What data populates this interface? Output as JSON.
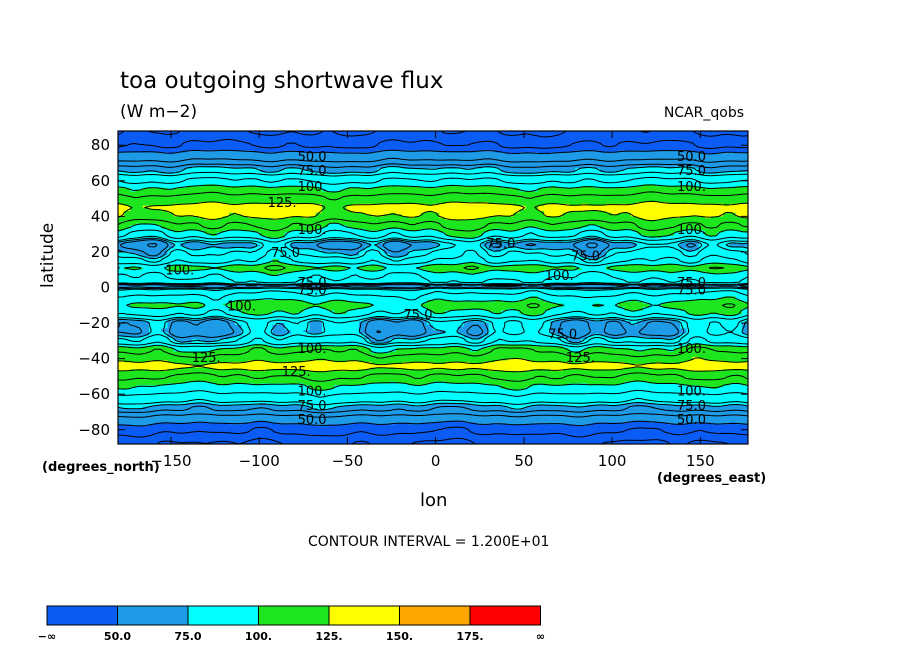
{
  "title": "toa outgoing shortwave flux",
  "units": "(W m−2)",
  "source": "NCAR_qobs",
  "ylabel": "latitude",
  "xlabel": "lon",
  "y_units": "(degrees_north)",
  "x_units": "(degrees_east)",
  "contour_interval_text": "CONTOUR INTERVAL = 1.200E+01",
  "colors": {
    "band0": "#0a5cf5",
    "band1": "#1e9be6",
    "band2": "#00ffff",
    "band3": "#1ee61e",
    "band4": "#ffff00",
    "band5": "#ffa500",
    "band6": "#ff0000"
  },
  "chart_data": {
    "type": "heatmap",
    "title": "toa outgoing shortwave flux",
    "units": "(W m−2)",
    "xlabel": "lon",
    "ylabel": "latitude",
    "xlim": [
      -180,
      177
    ],
    "ylim": [
      -88,
      88
    ],
    "x_ticks": [
      -150,
      -100,
      -50,
      0,
      50,
      100,
      150
    ],
    "x_tick_labels": [
      "−150",
      "−100",
      "−50",
      "0",
      "50",
      "100",
      "150"
    ],
    "y_ticks": [
      80,
      60,
      40,
      20,
      0,
      -20,
      -40,
      -60,
      -80
    ],
    "y_tick_labels": [
      "80",
      "60",
      "40",
      "20",
      "0",
      "−20",
      "−40",
      "−60",
      "−80"
    ],
    "colorbar": {
      "labels": [
        "−∞",
        "50.0",
        "75.0",
        "100.",
        "125.",
        "150.",
        "175.",
        "∞"
      ]
    },
    "zonal_profile": [
      {
        "lat": 88,
        "value": 30
      },
      {
        "lat": 80,
        "value": 40
      },
      {
        "lat": 74,
        "value": 55
      },
      {
        "lat": 66,
        "value": 75
      },
      {
        "lat": 60,
        "value": 90
      },
      {
        "lat": 55,
        "value": 103
      },
      {
        "lat": 50,
        "value": 115
      },
      {
        "lat": 45,
        "value": 130
      },
      {
        "lat": 41,
        "value": 126
      },
      {
        "lat": 35,
        "value": 108
      },
      {
        "lat": 30,
        "value": 95
      },
      {
        "lat": 24,
        "value": 72
      },
      {
        "lat": 19,
        "value": 80
      },
      {
        "lat": 15,
        "value": 88
      },
      {
        "lat": 11,
        "value": 104
      },
      {
        "lat": 7,
        "value": 93
      },
      {
        "lat": 3,
        "value": 88
      },
      {
        "lat": 1,
        "value": 68
      },
      {
        "lat": -2,
        "value": 86
      },
      {
        "lat": -6,
        "value": 95
      },
      {
        "lat": -10,
        "value": 104
      },
      {
        "lat": -14,
        "value": 96
      },
      {
        "lat": -20,
        "value": 74
      },
      {
        "lat": -25,
        "value": 72
      },
      {
        "lat": -30,
        "value": 82
      },
      {
        "lat": -35,
        "value": 105
      },
      {
        "lat": -40,
        "value": 118
      },
      {
        "lat": -44,
        "value": 132
      },
      {
        "lat": -50,
        "value": 110
      },
      {
        "lat": -56,
        "value": 98
      },
      {
        "lat": -62,
        "value": 85
      },
      {
        "lat": -68,
        "value": 72
      },
      {
        "lat": -74,
        "value": 55
      },
      {
        "lat": -80,
        "value": 42
      },
      {
        "lat": -88,
        "value": 30
      }
    ],
    "contour_labels": [
      {
        "text": "50.0",
        "lon": -70,
        "lat": 74
      },
      {
        "text": "75.0",
        "lon": -70,
        "lat": 66
      },
      {
        "text": "100.",
        "lon": -70,
        "lat": 57
      },
      {
        "text": "125.",
        "lon": -87,
        "lat": 48
      },
      {
        "text": "100.",
        "lon": -70,
        "lat": 33
      },
      {
        "text": "75.0",
        "lon": -85,
        "lat": 20
      },
      {
        "text": "75.0",
        "lon": 37,
        "lat": 25
      },
      {
        "text": "75.0",
        "lon": 85,
        "lat": 18
      },
      {
        "text": "100.",
        "lon": -145,
        "lat": 10
      },
      {
        "text": "100.",
        "lon": 70,
        "lat": 7
      },
      {
        "text": "75.0",
        "lon": -70,
        "lat": 3
      },
      {
        "text": "75.0",
        "lon": -70,
        "lat": -1
      },
      {
        "text": "100.",
        "lon": -110,
        "lat": -10
      },
      {
        "text": "75.0",
        "lon": -10,
        "lat": -15
      },
      {
        "text": "75.0",
        "lon": 72,
        "lat": -26
      },
      {
        "text": "100.",
        "lon": -70,
        "lat": -34
      },
      {
        "text": "125.",
        "lon": -130,
        "lat": -39
      },
      {
        "text": "125.",
        "lon": 82,
        "lat": -39
      },
      {
        "text": "125.",
        "lon": -79,
        "lat": -47
      },
      {
        "text": "100.",
        "lon": -70,
        "lat": -58
      },
      {
        "text": "75.0",
        "lon": -70,
        "lat": -66
      },
      {
        "text": "50.0",
        "lon": -70,
        "lat": -74
      },
      {
        "text": "50.0",
        "lon": 145,
        "lat": 74
      },
      {
        "text": "75.0",
        "lon": 145,
        "lat": 66
      },
      {
        "text": "100.",
        "lon": 145,
        "lat": 57
      },
      {
        "text": "100.",
        "lon": 145,
        "lat": 33
      },
      {
        "text": "75.0",
        "lon": 145,
        "lat": 3
      },
      {
        "text": "75.0",
        "lon": 145,
        "lat": -1
      },
      {
        "text": "100.",
        "lon": 145,
        "lat": -34
      },
      {
        "text": "100.",
        "lon": 145,
        "lat": -58
      },
      {
        "text": "75.0",
        "lon": 145,
        "lat": -66
      },
      {
        "text": "50.0",
        "lon": 145,
        "lat": -74
      }
    ]
  }
}
